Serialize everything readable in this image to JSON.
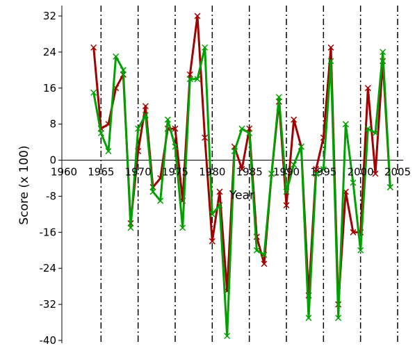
{
  "chart_data": {
    "type": "line",
    "title": "",
    "xlabel": "Year",
    "ylabel": "Score (x 100)",
    "xlim": [
      1960,
      2005
    ],
    "ylim": [
      -40,
      32
    ],
    "x_ticks": [
      "1960",
      "1965",
      "1970",
      "1975",
      "1980",
      "1985",
      "1990",
      "1995",
      "2000",
      "2005"
    ],
    "y_ticks": [
      "32",
      "24",
      "16",
      "8",
      "0",
      "-8",
      "-16",
      "-24",
      "-32",
      "-40"
    ],
    "grid": "vertical dash-dot lines at each x tick",
    "legend": "none",
    "series": [
      {
        "color": "#a00000",
        "marker": "x",
        "x": [
          1964,
          1965,
          1966,
          1967,
          1968,
          1969,
          1970,
          1971,
          1972,
          1973,
          1974,
          1975,
          1976,
          1977,
          1978,
          1979,
          1980,
          1981,
          1982,
          1983,
          1984,
          1985,
          1986,
          1987,
          1988,
          1989,
          1990,
          1991,
          1992,
          1993,
          1994,
          1995,
          1996,
          1997,
          1998,
          1999,
          2000,
          2001,
          2002,
          2003,
          2004
        ],
        "y": [
          25,
          7,
          8,
          16,
          19,
          -14,
          2,
          12,
          -6,
          -4,
          7,
          7,
          -9,
          19,
          32,
          5,
          -18,
          -7,
          -29,
          3,
          -2,
          7,
          -17,
          -23,
          -3,
          13,
          -10,
          9,
          3,
          -30,
          -2,
          5,
          25,
          -32,
          -7,
          -16,
          -16,
          16,
          -3,
          22,
          -6
        ]
      },
      {
        "color": "#00a000",
        "marker": "x",
        "x": [
          1964,
          1965,
          1966,
          1967,
          1968,
          1969,
          1970,
          1971,
          1972,
          1973,
          1974,
          1975,
          1976,
          1977,
          1978,
          1979,
          1980,
          1981,
          1982,
          1983,
          1984,
          1985,
          1986,
          1987,
          1988,
          1989,
          1990,
          1991,
          1992,
          1993,
          1994,
          1995,
          1996,
          1997,
          1998,
          1999,
          2000,
          2001,
          2002,
          2003,
          2004
        ],
        "y": [
          15,
          6,
          2,
          23,
          20,
          -15,
          7,
          10,
          -7,
          -9,
          9,
          3,
          -15,
          18,
          18,
          25,
          -12,
          -10,
          -39,
          2,
          7,
          6,
          -20,
          -21,
          -3,
          14,
          -7,
          -1,
          3,
          -35,
          -3,
          -2,
          22,
          -35,
          8,
          -5,
          -20,
          7,
          6,
          24,
          -6
        ]
      }
    ]
  }
}
